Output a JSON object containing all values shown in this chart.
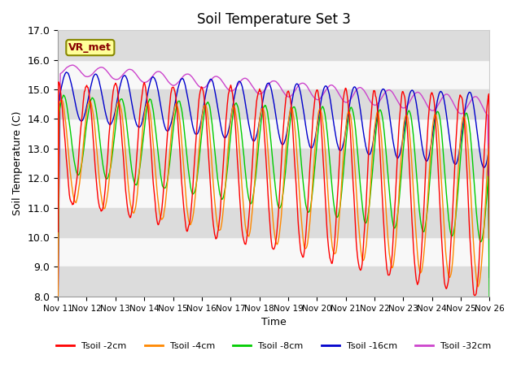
{
  "title": "Soil Temperature Set 3",
  "xlabel": "Time",
  "ylabel": "Soil Temperature (C)",
  "ylim": [
    8.0,
    17.0
  ],
  "yticks": [
    8.0,
    9.0,
    10.0,
    11.0,
    12.0,
    13.0,
    14.0,
    15.0,
    16.0,
    17.0
  ],
  "xtick_labels": [
    "Nov 11",
    "Nov 12",
    "Nov 13",
    "Nov 14",
    "Nov 15",
    "Nov 16",
    "Nov 17",
    "Nov 18",
    "Nov 19",
    "Nov 20",
    "Nov 21",
    "Nov 22",
    "Nov 23",
    "Nov 24",
    "Nov 25",
    "Nov 26"
  ],
  "bg_band_color": "#dcdcdc",
  "line_colors": {
    "2cm": "#ff0000",
    "4cm": "#ff8800",
    "8cm": "#00cc00",
    "16cm": "#0000cc",
    "32cm": "#cc44cc"
  },
  "legend_labels": [
    "Tsoil -2cm",
    "Tsoil -4cm",
    "Tsoil -8cm",
    "Tsoil -16cm",
    "Tsoil -32cm"
  ],
  "vr_met_label": "VR_met",
  "vr_met_bg": "#ffff99",
  "vr_met_border": "#888800",
  "axes_bg": "#f8f8f8"
}
